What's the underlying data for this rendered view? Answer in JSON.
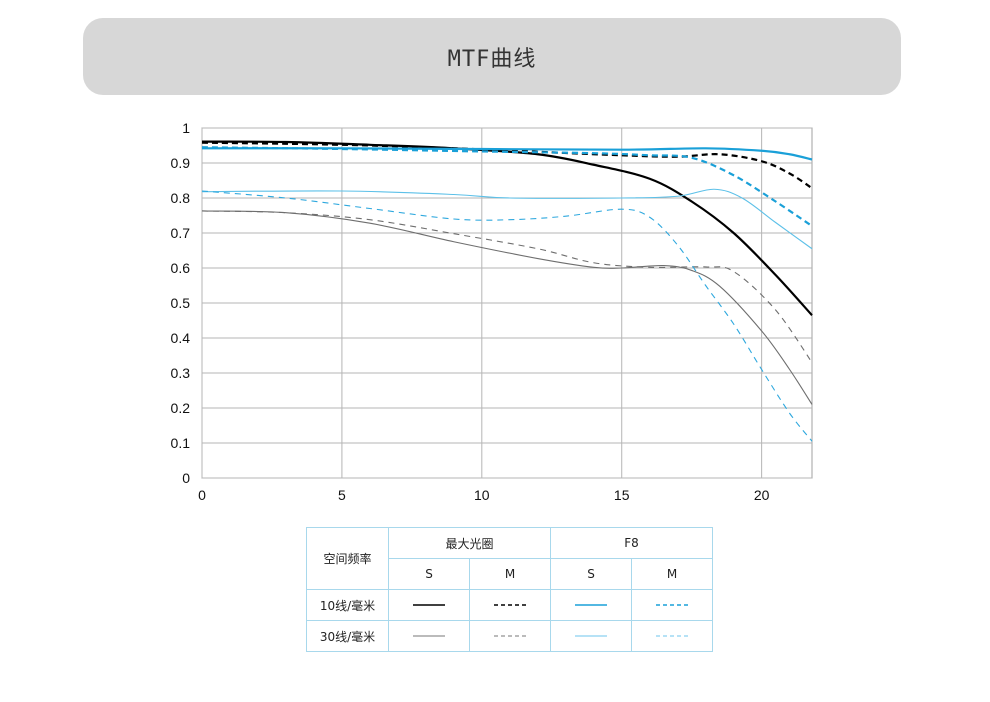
{
  "header": {
    "title": "MTF曲线"
  },
  "chart_data": {
    "type": "line",
    "xlim": [
      0,
      21.8
    ],
    "ylim": [
      0,
      1
    ],
    "x_ticks": [
      0,
      5,
      10,
      15,
      20
    ],
    "y_ticks": [
      0,
      0.1,
      0.2,
      0.3,
      0.4,
      0.5,
      0.6,
      0.7,
      0.8,
      0.9,
      1
    ],
    "grid": true,
    "series": [
      {
        "key": "wo_10_s",
        "color": "#000000",
        "dash": "solid",
        "width": 2.2,
        "points": [
          [
            0,
            0.961
          ],
          [
            3,
            0.96
          ],
          [
            6,
            0.952
          ],
          [
            9,
            0.942
          ],
          [
            12,
            0.925
          ],
          [
            14,
            0.895
          ],
          [
            16,
            0.855
          ],
          [
            17.5,
            0.79
          ],
          [
            19,
            0.7
          ],
          [
            20.5,
            0.58
          ],
          [
            21.8,
            0.465
          ]
        ]
      },
      {
        "key": "wo_10_m",
        "color": "#000000",
        "dash": "dashed",
        "width": 2.2,
        "points": [
          [
            0,
            0.958
          ],
          [
            3,
            0.955
          ],
          [
            6,
            0.95
          ],
          [
            9,
            0.942
          ],
          [
            12,
            0.932
          ],
          [
            15,
            0.922
          ],
          [
            17,
            0.918
          ],
          [
            18.5,
            0.925
          ],
          [
            20,
            0.905
          ],
          [
            21,
            0.87
          ],
          [
            21.8,
            0.828
          ]
        ]
      },
      {
        "key": "f8_10_s",
        "color": "#1aa0d8",
        "dash": "solid",
        "width": 2.2,
        "points": [
          [
            0,
            0.942
          ],
          [
            5,
            0.942
          ],
          [
            10,
            0.94
          ],
          [
            15,
            0.938
          ],
          [
            18,
            0.942
          ],
          [
            20,
            0.935
          ],
          [
            21,
            0.925
          ],
          [
            21.8,
            0.91
          ]
        ]
      },
      {
        "key": "f8_10_m",
        "color": "#1aa0d8",
        "dash": "dashed",
        "width": 2.2,
        "points": [
          [
            0,
            0.945
          ],
          [
            5,
            0.94
          ],
          [
            10,
            0.933
          ],
          [
            14,
            0.928
          ],
          [
            16,
            0.922
          ],
          [
            17.5,
            0.915
          ],
          [
            19,
            0.865
          ],
          [
            20.5,
            0.79
          ],
          [
            21.8,
            0.72
          ]
        ]
      },
      {
        "key": "wo_30_s",
        "color": "#6e6e6e",
        "dash": "solid",
        "width": 1.1,
        "points": [
          [
            0,
            0.763
          ],
          [
            3,
            0.758
          ],
          [
            6,
            0.728
          ],
          [
            9,
            0.675
          ],
          [
            12,
            0.627
          ],
          [
            14,
            0.602
          ],
          [
            15,
            0.6
          ],
          [
            16.5,
            0.607
          ],
          [
            17.5,
            0.593
          ],
          [
            18.5,
            0.548
          ],
          [
            20,
            0.42
          ],
          [
            21,
            0.31
          ],
          [
            21.8,
            0.21
          ]
        ]
      },
      {
        "key": "wo_30_m",
        "color": "#6e6e6e",
        "dash": "dashed",
        "width": 1.1,
        "points": [
          [
            0,
            0.763
          ],
          [
            3,
            0.758
          ],
          [
            6,
            0.738
          ],
          [
            9,
            0.698
          ],
          [
            12,
            0.655
          ],
          [
            14,
            0.615
          ],
          [
            16,
            0.602
          ],
          [
            18,
            0.603
          ],
          [
            19,
            0.59
          ],
          [
            20.5,
            0.48
          ],
          [
            21.8,
            0.33
          ]
        ]
      },
      {
        "key": "f8_30_s",
        "color": "#5cc0e8",
        "dash": "solid",
        "width": 1.1,
        "points": [
          [
            0,
            0.818
          ],
          [
            5,
            0.82
          ],
          [
            9,
            0.81
          ],
          [
            11,
            0.8
          ],
          [
            15,
            0.8
          ],
          [
            17,
            0.805
          ],
          [
            18.3,
            0.825
          ],
          [
            19.3,
            0.8
          ],
          [
            20.5,
            0.73
          ],
          [
            21.8,
            0.655
          ]
        ]
      },
      {
        "key": "f8_30_m",
        "color": "#2ea8de",
        "dash": "dashed",
        "width": 1.1,
        "points": [
          [
            0,
            0.82
          ],
          [
            3,
            0.8
          ],
          [
            6,
            0.77
          ],
          [
            9,
            0.74
          ],
          [
            11,
            0.738
          ],
          [
            13,
            0.748
          ],
          [
            15,
            0.768
          ],
          [
            16,
            0.745
          ],
          [
            17,
            0.665
          ],
          [
            18,
            0.55
          ],
          [
            19,
            0.44
          ],
          [
            20,
            0.31
          ],
          [
            21,
            0.185
          ],
          [
            21.8,
            0.105
          ]
        ]
      }
    ]
  },
  "legend": {
    "header_freq": "空间频率",
    "header_wide": "最大光圈",
    "header_f8": "F8",
    "s": "S",
    "m": "M",
    "row10": "10线/毫米",
    "row30": "30线/毫米"
  }
}
